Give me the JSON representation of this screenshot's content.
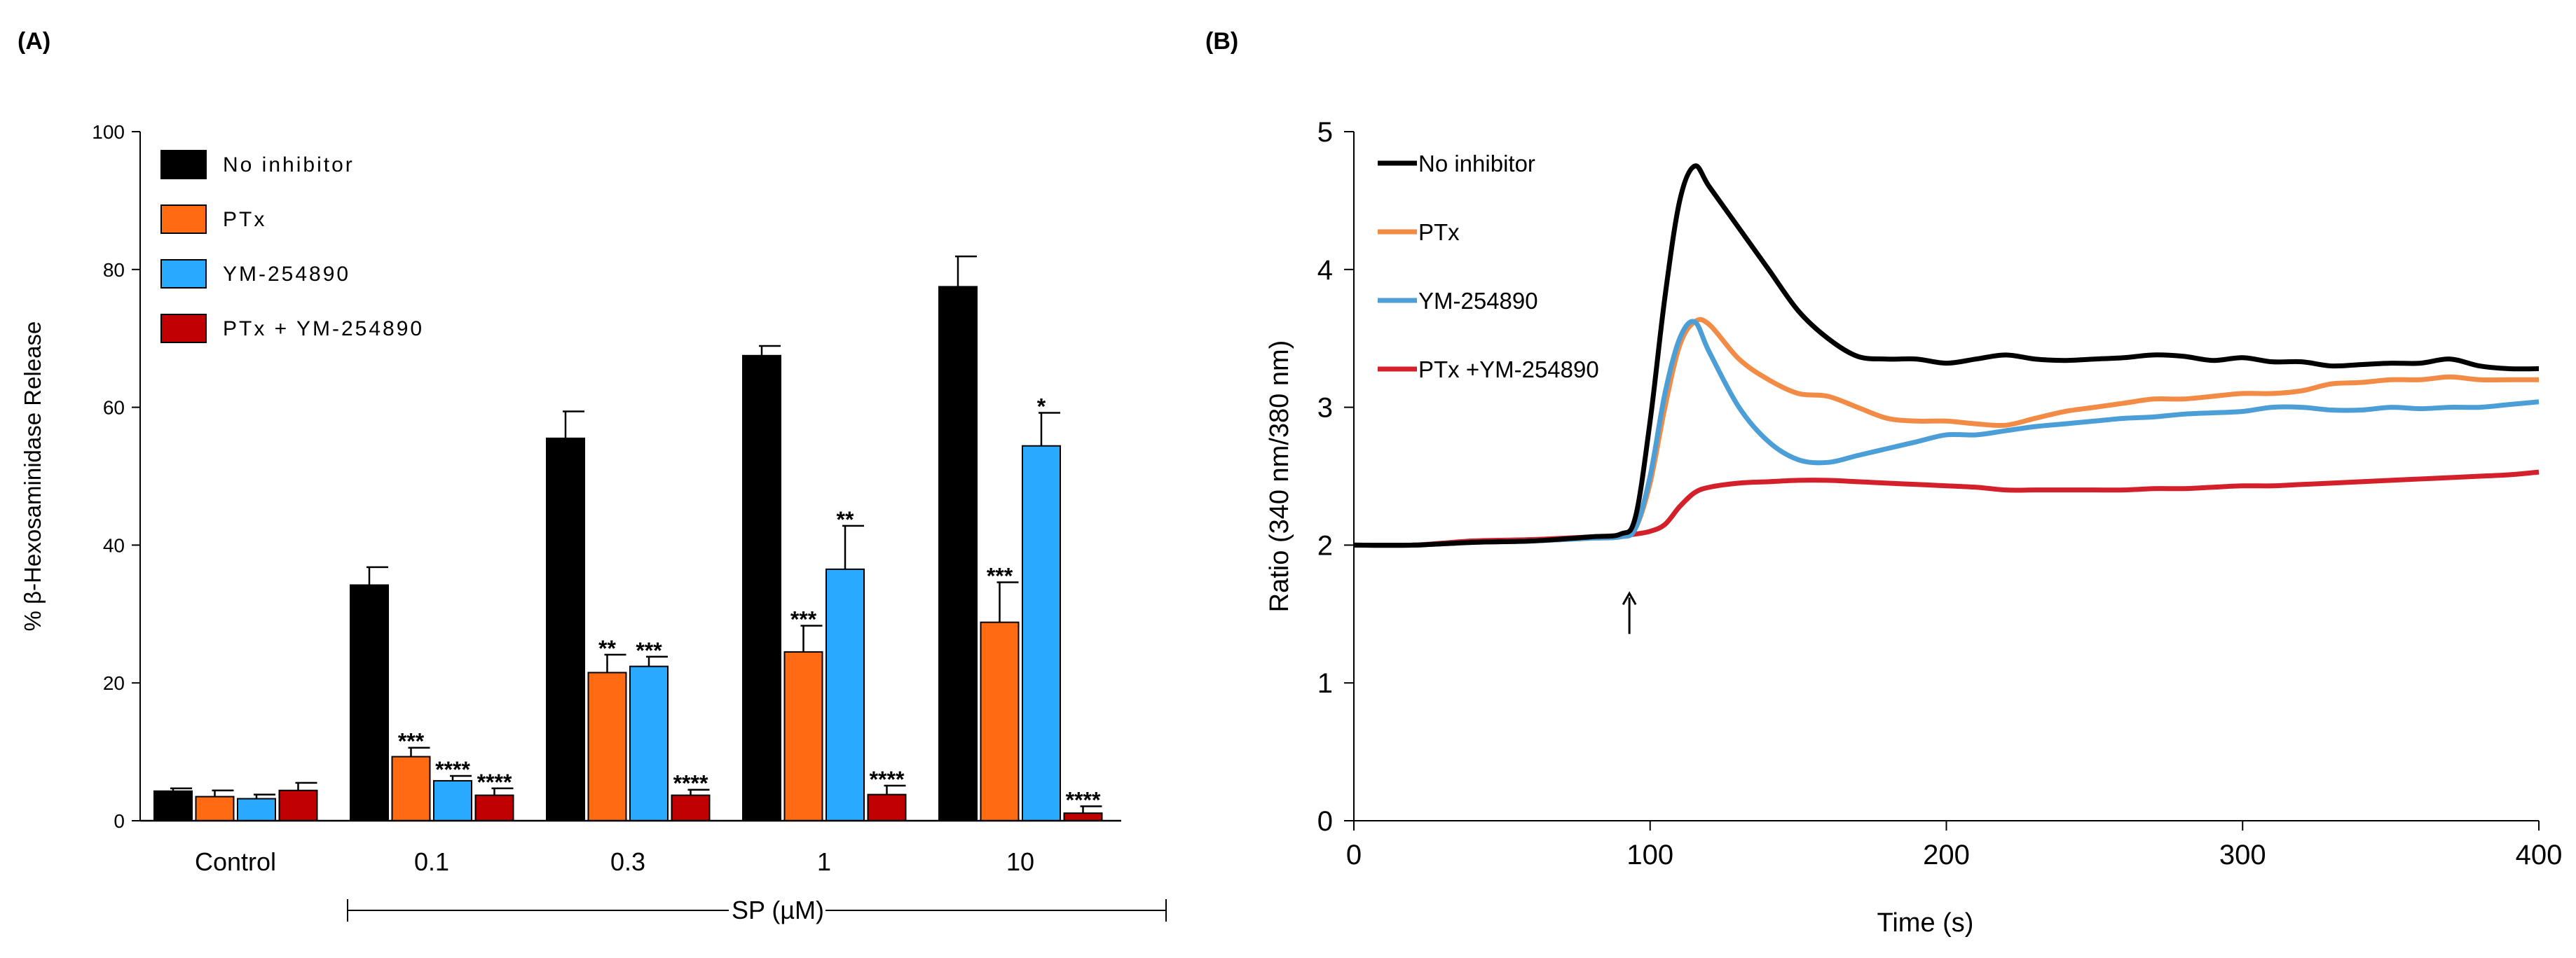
{
  "panels": {
    "a_label": "(A)",
    "b_label": "(B)"
  },
  "chart_data": [
    {
      "type": "bar",
      "title": "",
      "ylabel": "% β-Hexosaminidase Release",
      "xlabel": "",
      "ylim": [
        0,
        100
      ],
      "yticks": [
        0,
        20,
        40,
        60,
        80,
        100
      ],
      "categories": [
        "Control",
        "0.1",
        "0.3",
        "1",
        "10"
      ],
      "group_bracket_label": "SP (µM)",
      "grid": false,
      "legend_position": "top-left",
      "series": [
        {
          "name": "No inhibitor",
          "color": "#000000",
          "values": [
            4.3,
            34.2,
            55.5,
            67.5,
            77.5
          ],
          "errors": [
            0.4,
            2.6,
            3.9,
            1.4,
            4.4
          ],
          "significance": [
            "",
            "",
            "",
            "",
            ""
          ]
        },
        {
          "name": "PTx",
          "color": "#ff6a13",
          "values": [
            3.5,
            9.3,
            21.5,
            24.5,
            28.8
          ],
          "errors": [
            0.9,
            1.3,
            2.6,
            3.8,
            5.8
          ],
          "significance": [
            "",
            "***",
            "**",
            "***",
            "***"
          ]
        },
        {
          "name": "YM-254890",
          "color": "#29a9ff",
          "values": [
            3.2,
            5.8,
            22.4,
            36.5,
            54.4
          ],
          "errors": [
            0.6,
            0.7,
            1.4,
            6.3,
            4.8
          ],
          "significance": [
            "",
            "****",
            "***",
            "**",
            "*"
          ]
        },
        {
          "name": "PTx + YM-254890",
          "color": "#c00000",
          "values": [
            4.4,
            3.7,
            3.7,
            3.8,
            1.1
          ],
          "errors": [
            1.1,
            1.0,
            0.8,
            1.3,
            1.0
          ],
          "significance": [
            "",
            "****",
            "****",
            "****",
            "****"
          ]
        }
      ]
    },
    {
      "type": "line",
      "title": "",
      "xlabel": "Time (s)",
      "ylabel": "Ratio (340 nm/380 nm)",
      "xlim": [
        0,
        400
      ],
      "ylim": [
        0,
        5
      ],
      "xticks": [
        0,
        100,
        200,
        300,
        400
      ],
      "yticks": [
        0,
        1,
        2,
        3,
        4,
        5
      ],
      "grid": false,
      "legend_position": "top-left",
      "annotation": {
        "type": "arrow-up",
        "x": 93,
        "y": 1.65
      },
      "series": [
        {
          "name": "No inhibitor",
          "color": "#000000",
          "x": [
            0,
            20,
            40,
            60,
            80,
            90,
            95,
            100,
            105,
            110,
            115,
            120,
            130,
            140,
            150,
            160,
            170,
            180,
            190,
            200,
            210,
            220,
            230,
            240,
            250,
            260,
            270,
            280,
            290,
            300,
            310,
            320,
            330,
            340,
            350,
            360,
            370,
            380,
            390,
            400
          ],
          "y": [
            2.0,
            2.0,
            2.02,
            2.03,
            2.06,
            2.08,
            2.2,
            2.9,
            3.8,
            4.5,
            4.75,
            4.6,
            4.3,
            4.0,
            3.7,
            3.5,
            3.37,
            3.35,
            3.35,
            3.32,
            3.35,
            3.38,
            3.35,
            3.34,
            3.35,
            3.36,
            3.38,
            3.37,
            3.34,
            3.36,
            3.33,
            3.33,
            3.3,
            3.31,
            3.32,
            3.32,
            3.35,
            3.3,
            3.28,
            3.28
          ]
        },
        {
          "name": "PTx",
          "color": "#f28b45",
          "x": [
            0,
            20,
            40,
            60,
            80,
            90,
            95,
            100,
            105,
            110,
            115,
            120,
            130,
            140,
            150,
            160,
            170,
            180,
            190,
            200,
            210,
            220,
            230,
            240,
            250,
            260,
            270,
            280,
            290,
            300,
            310,
            320,
            330,
            340,
            350,
            360,
            370,
            380,
            390,
            400
          ],
          "y": [
            2.0,
            2.0,
            2.02,
            2.03,
            2.05,
            2.06,
            2.12,
            2.45,
            3.0,
            3.45,
            3.62,
            3.6,
            3.35,
            3.2,
            3.1,
            3.08,
            3.0,
            2.92,
            2.9,
            2.9,
            2.88,
            2.87,
            2.92,
            2.97,
            3.0,
            3.03,
            3.06,
            3.06,
            3.08,
            3.1,
            3.1,
            3.12,
            3.17,
            3.18,
            3.2,
            3.2,
            3.22,
            3.2,
            3.2,
            3.2
          ]
        },
        {
          "name": "YM-254890",
          "color": "#4c9fd6",
          "x": [
            0,
            20,
            40,
            60,
            80,
            90,
            95,
            100,
            105,
            110,
            115,
            120,
            130,
            140,
            150,
            160,
            170,
            180,
            190,
            200,
            210,
            220,
            230,
            240,
            250,
            260,
            270,
            280,
            290,
            300,
            310,
            320,
            330,
            340,
            350,
            360,
            370,
            380,
            390,
            400
          ],
          "y": [
            2.0,
            2.0,
            2.02,
            2.03,
            2.05,
            2.06,
            2.12,
            2.5,
            3.1,
            3.5,
            3.62,
            3.4,
            3.0,
            2.75,
            2.62,
            2.6,
            2.65,
            2.7,
            2.75,
            2.8,
            2.8,
            2.83,
            2.86,
            2.88,
            2.9,
            2.92,
            2.93,
            2.95,
            2.96,
            2.97,
            3.0,
            3.0,
            2.98,
            2.98,
            3.0,
            2.99,
            3.0,
            3.0,
            3.02,
            3.04
          ]
        },
        {
          "name": "PTx +YM-254890",
          "color": "#d4202a",
          "x": [
            0,
            20,
            40,
            60,
            80,
            90,
            95,
            100,
            105,
            110,
            115,
            120,
            130,
            140,
            150,
            160,
            170,
            180,
            190,
            200,
            210,
            220,
            230,
            240,
            250,
            260,
            270,
            280,
            290,
            300,
            310,
            320,
            330,
            340,
            350,
            360,
            370,
            380,
            390,
            400
          ],
          "y": [
            2.0,
            2.0,
            2.03,
            2.04,
            2.06,
            2.07,
            2.08,
            2.1,
            2.15,
            2.28,
            2.38,
            2.42,
            2.45,
            2.46,
            2.47,
            2.47,
            2.46,
            2.45,
            2.44,
            2.43,
            2.42,
            2.4,
            2.4,
            2.4,
            2.4,
            2.4,
            2.41,
            2.41,
            2.42,
            2.43,
            2.43,
            2.44,
            2.45,
            2.46,
            2.47,
            2.48,
            2.49,
            2.5,
            2.51,
            2.53
          ]
        }
      ]
    }
  ]
}
